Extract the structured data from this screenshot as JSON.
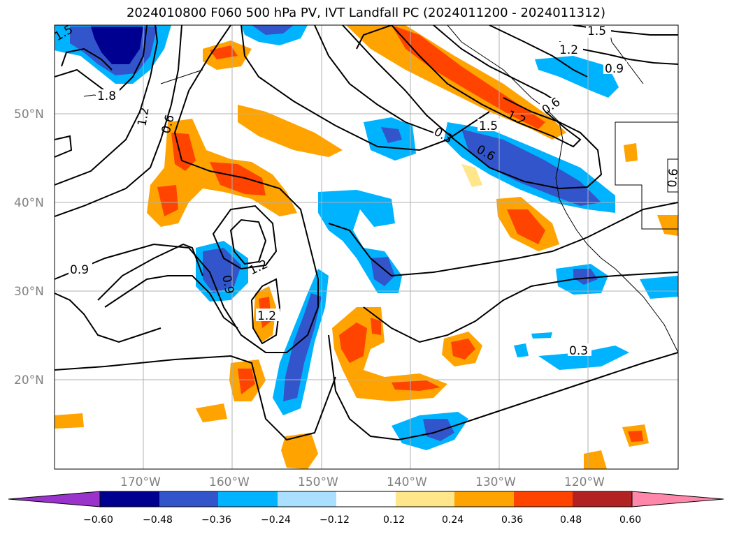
{
  "title": "2024010800 F060 500 hPa PV, IVT Landfall PC (2024011200 - 2024011312)",
  "lat_labels": [
    "50°N",
    "40°N",
    "30°N",
    "20°N"
  ],
  "lon_labels": [
    "170°W",
    "160°W",
    "150°W",
    "140°W",
    "130°W",
    "120°W"
  ],
  "contour_labels": [
    "1.5",
    "1.2",
    "0.9",
    "0.6",
    "1.8",
    "1.2",
    "0.6",
    "1.5",
    "1.2",
    "0.6",
    "0.3",
    "0.6",
    "0.9",
    "1.2",
    "0.9",
    "1.2",
    "0.3",
    "1.5"
  ],
  "colorbar": {
    "tick_labels": [
      "−0.60",
      "−0.48",
      "−0.36",
      "−0.24",
      "−0.12",
      "0.12",
      "0.24",
      "0.36",
      "0.48",
      "0.60"
    ],
    "colors": [
      "#9933cc",
      "#000090",
      "#3355cc",
      "#00b3ff",
      "#aadfff",
      "#ffffff",
      "#ffe68a",
      "#ffa300",
      "#ff4400",
      "#b22222",
      "#ff88aa"
    ]
  },
  "fill_colors": {
    "light_blue": "#aadfff",
    "blue": "#00b3ff",
    "mid_blue": "#3355cc",
    "navy": "#000090",
    "yellow": "#ffe68a",
    "orange": "#ffa300",
    "red_orange": "#ff4400"
  }
}
